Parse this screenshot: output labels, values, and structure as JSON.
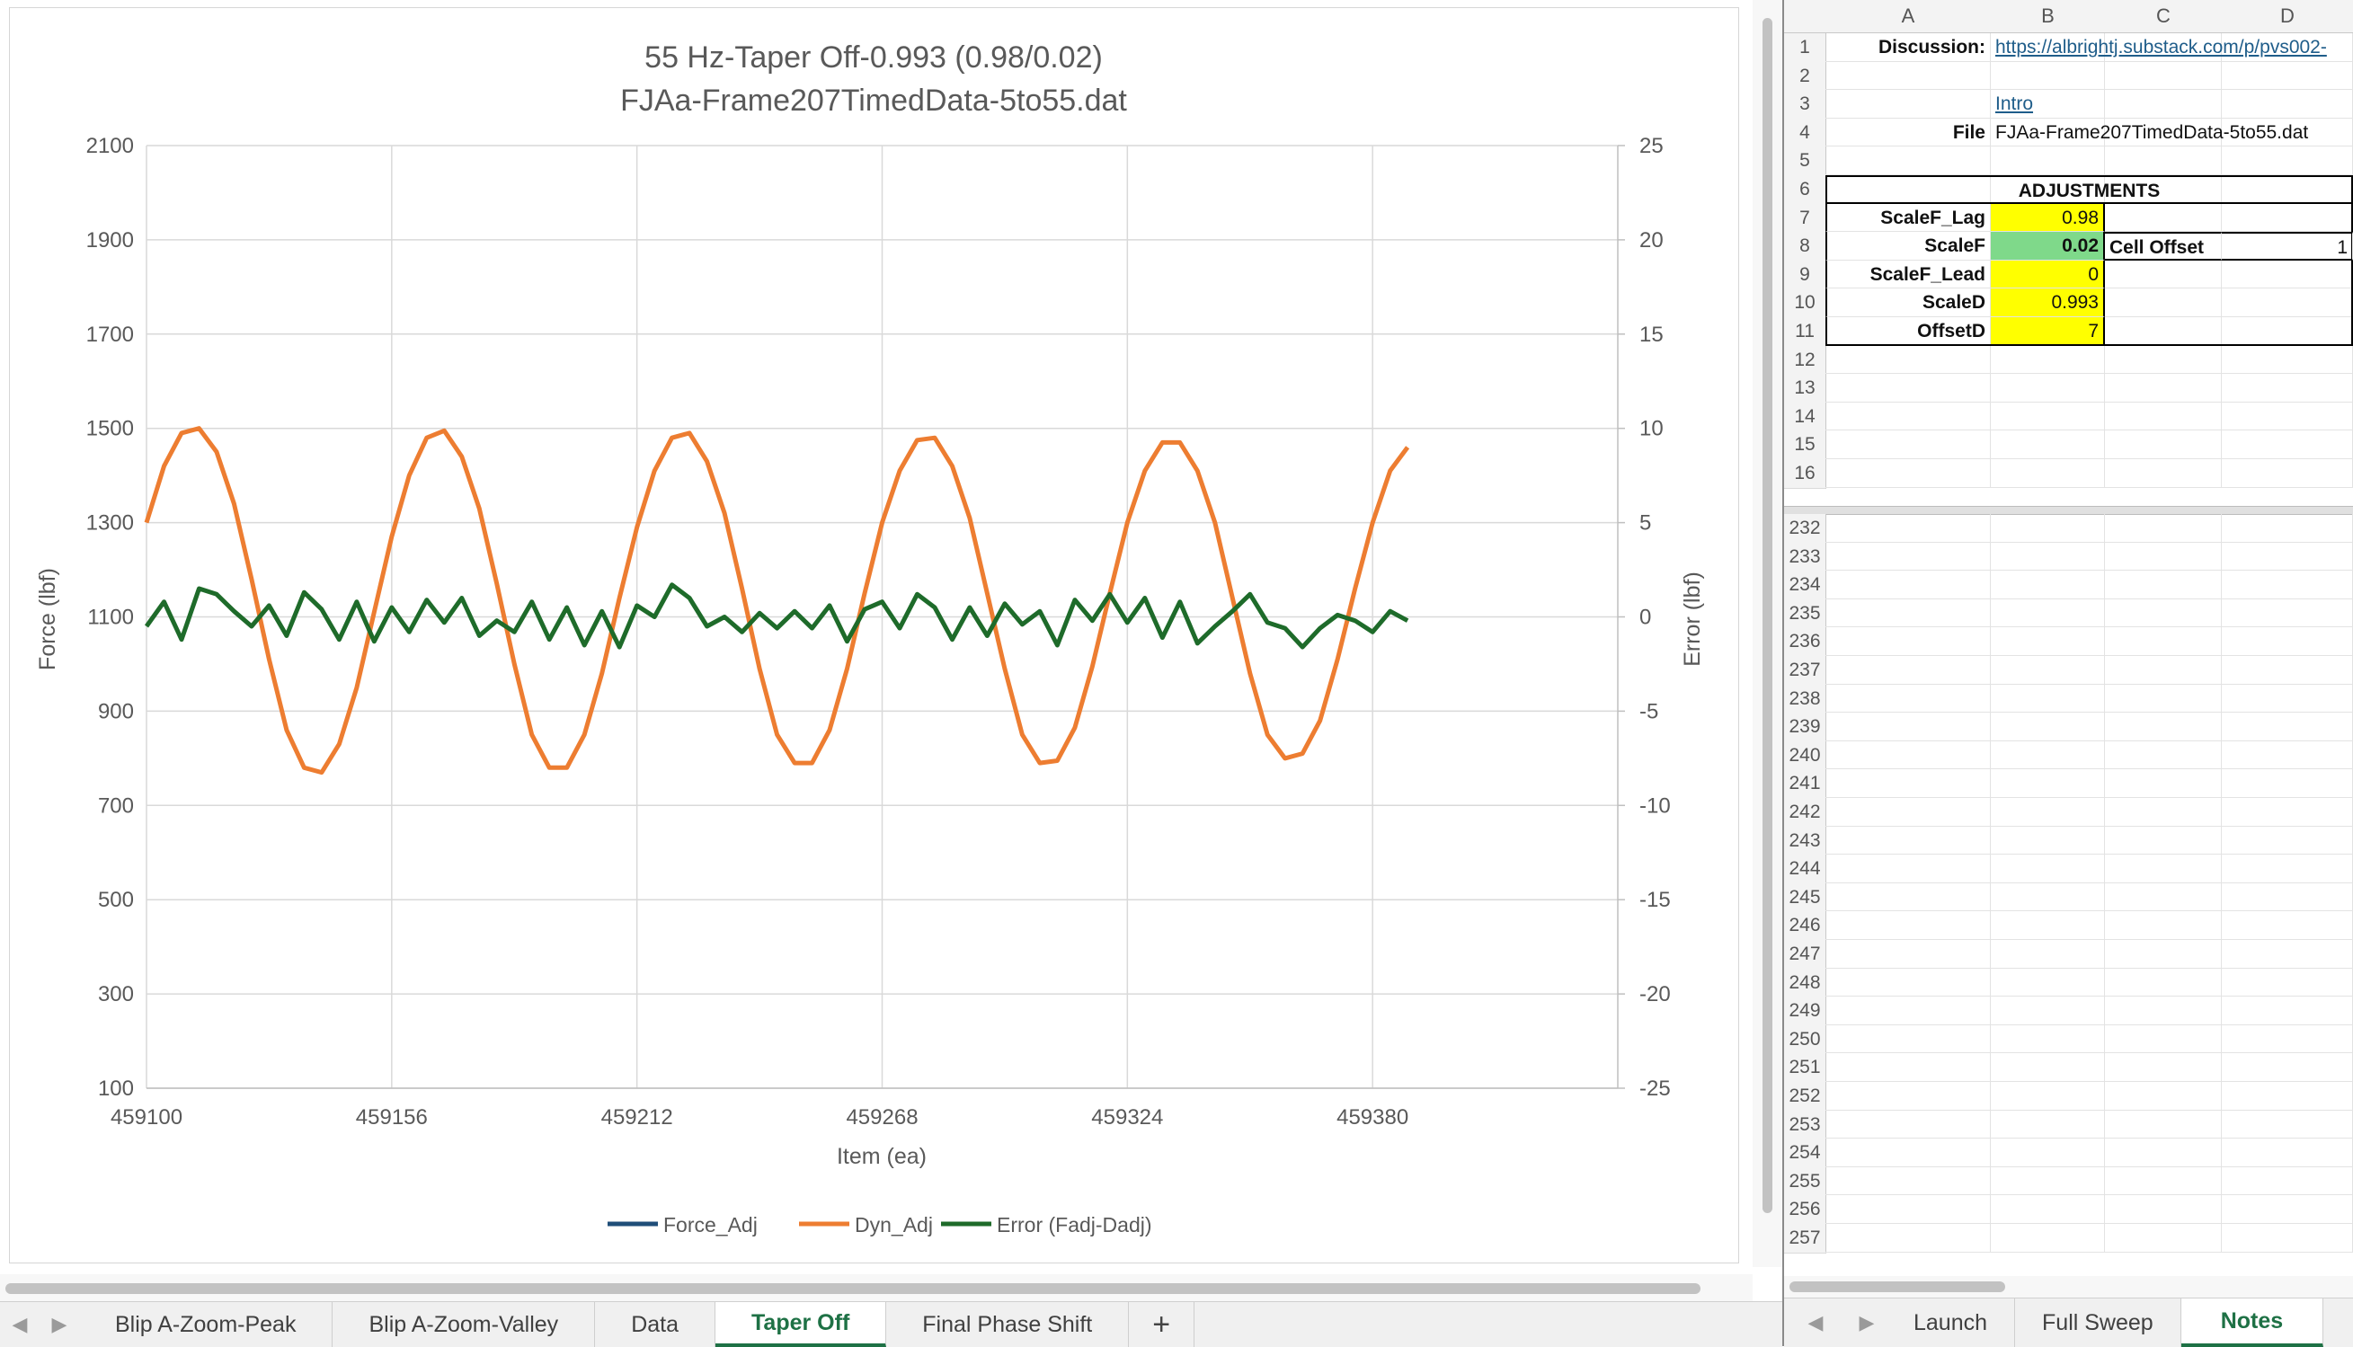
{
  "left_tabs": {
    "items": [
      {
        "label": "Blip A-Zoom-Peak",
        "active": false
      },
      {
        "label": "Blip A-Zoom-Valley",
        "active": false
      },
      {
        "label": "Data",
        "active": false
      },
      {
        "label": "Taper Off",
        "active": true
      },
      {
        "label": "Final Phase Shift",
        "active": false
      }
    ],
    "add_label": "+"
  },
  "right_tabs": {
    "items": [
      {
        "label": "Launch",
        "active": false
      },
      {
        "label": "Full Sweep",
        "active": false
      },
      {
        "label": "Notes",
        "active": true
      }
    ]
  },
  "icons": {
    "tab_prev": "chevron-left-icon",
    "tab_next": "chevron-right-icon",
    "add_sheet": "plus-icon"
  },
  "colors": {
    "force_adj": "#1f4e79",
    "dyn_adj": "#ed7d31",
    "error": "#1e6b2a",
    "active_tab": "#1e7145",
    "input_yellow": "#ffff00",
    "input_green": "#7fd98a"
  },
  "chart_data": {
    "type": "line",
    "title": "55 Hz-Taper Off-0.993 (0.98/0.02)",
    "subtitle": "FJAa-Frame207TimedData-5to55.dat",
    "xlabel": "Item (ea)",
    "ylabel": "Force (lbf)",
    "y2label": "Error (lbf)",
    "xlim": [
      459100,
      459436
    ],
    "ylim": [
      100,
      2100
    ],
    "y2lim": [
      -25,
      25
    ],
    "x_ticks": [
      "459100",
      "459156",
      "459212",
      "459268",
      "459324",
      "459380"
    ],
    "y_ticks": [
      "2100",
      "1900",
      "1700",
      "1500",
      "1300",
      "1100",
      "900",
      "700",
      "500",
      "300",
      "100"
    ],
    "y2_ticks": [
      "25",
      "20",
      "15",
      "10",
      "5",
      "0",
      "-5",
      "-10",
      "-15",
      "-20",
      "-25"
    ],
    "grid": true,
    "legend_position": "bottom",
    "series": [
      {
        "name": "Force_Adj",
        "axis": "left",
        "x": [],
        "values": []
      },
      {
        "name": "Dyn_Adj",
        "axis": "left",
        "x": [
          459100,
          459104,
          459108,
          459112,
          459116,
          459120,
          459124,
          459128,
          459132,
          459136,
          459140,
          459144,
          459148,
          459152,
          459156,
          459160,
          459164,
          459168,
          459172,
          459176,
          459180,
          459184,
          459188,
          459192,
          459196,
          459200,
          459204,
          459208,
          459212,
          459216,
          459220,
          459224,
          459228,
          459232,
          459236,
          459240,
          459244,
          459248,
          459252,
          459256,
          459260,
          459264,
          459268,
          459272,
          459276,
          459280,
          459284,
          459288,
          459292,
          459296,
          459300,
          459304,
          459308,
          459312,
          459316,
          459320,
          459324,
          459328,
          459332,
          459336,
          459340,
          459344,
          459348,
          459352,
          459356,
          459360,
          459364,
          459368,
          459372,
          459376,
          459380,
          459384,
          459388
        ],
        "values": [
          1300,
          1420,
          1490,
          1500,
          1450,
          1340,
          1180,
          1010,
          860,
          780,
          770,
          830,
          950,
          1110,
          1270,
          1400,
          1480,
          1495,
          1440,
          1330,
          1170,
          1000,
          850,
          780,
          780,
          850,
          980,
          1140,
          1290,
          1410,
          1480,
          1490,
          1430,
          1320,
          1160,
          990,
          850,
          790,
          790,
          860,
          990,
          1150,
          1300,
          1410,
          1475,
          1480,
          1420,
          1310,
          1150,
          990,
          850,
          790,
          795,
          865,
          995,
          1150,
          1300,
          1410,
          1470,
          1470,
          1410,
          1300,
          1140,
          980,
          850,
          800,
          810,
          880,
          1010,
          1160,
          1300,
          1410,
          1460
        ]
      },
      {
        "name": "Error (Fadj-Dadj)",
        "axis": "right",
        "x": [
          459100,
          459104,
          459108,
          459112,
          459116,
          459120,
          459124,
          459128,
          459132,
          459136,
          459140,
          459144,
          459148,
          459152,
          459156,
          459160,
          459164,
          459168,
          459172,
          459176,
          459180,
          459184,
          459188,
          459192,
          459196,
          459200,
          459204,
          459208,
          459212,
          459216,
          459220,
          459224,
          459228,
          459232,
          459236,
          459240,
          459244,
          459248,
          459252,
          459256,
          459260,
          459264,
          459268,
          459272,
          459276,
          459280,
          459284,
          459288,
          459292,
          459296,
          459300,
          459304,
          459308,
          459312,
          459316,
          459320,
          459324,
          459328,
          459332,
          459336,
          459340,
          459344,
          459348,
          459352,
          459356,
          459360,
          459364,
          459368,
          459372,
          459376,
          459380,
          459384,
          459388
        ],
        "values": [
          -0.5,
          0.8,
          -1.2,
          1.5,
          1.2,
          0.3,
          -0.5,
          0.6,
          -1.0,
          1.3,
          0.4,
          -1.2,
          0.8,
          -1.3,
          0.5,
          -0.8,
          0.9,
          -0.3,
          1.0,
          -1.0,
          -0.2,
          -0.8,
          0.8,
          -1.2,
          0.5,
          -1.5,
          0.3,
          -1.6,
          0.6,
          0.0,
          1.7,
          1.0,
          -0.5,
          0.0,
          -0.8,
          0.2,
          -0.6,
          0.3,
          -0.6,
          0.6,
          -1.3,
          0.4,
          0.8,
          -0.6,
          1.2,
          0.5,
          -1.2,
          0.5,
          -1.0,
          0.7,
          -0.4,
          0.3,
          -1.5,
          0.9,
          -0.2,
          1.2,
          -0.3,
          1.0,
          -1.1,
          0.8,
          -1.4,
          -0.5,
          0.3,
          1.2,
          -0.3,
          -0.6,
          -1.6,
          -0.6,
          0.1,
          -0.2,
          -0.8,
          0.3,
          -0.2
        ]
      }
    ]
  },
  "sheet": {
    "columns": [
      "A",
      "B",
      "C",
      "D"
    ],
    "top_rows": [
      "1",
      "2",
      "3",
      "4",
      "5",
      "6",
      "7",
      "8",
      "9",
      "10",
      "11",
      "12",
      "13",
      "14",
      "15",
      "16"
    ],
    "bottom_rows": [
      "232",
      "233",
      "234",
      "235",
      "236",
      "237",
      "238",
      "239",
      "240",
      "241",
      "242",
      "243",
      "244",
      "245",
      "246",
      "247",
      "248",
      "249",
      "250",
      "251",
      "252",
      "253",
      "254",
      "255",
      "256",
      "257"
    ],
    "discussion_label": "Discussion:",
    "discussion_link": "https://albrightj.substack.com/p/pvs002-",
    "intro_link": "Intro",
    "file_label": "File",
    "file_value": "FJAa-Frame207TimedData-5to55.dat",
    "adjustments_title": "ADJUSTMENTS",
    "params": [
      {
        "label": "ScaleF_Lag",
        "value": "0.98",
        "fill": "yellow",
        "bold": false
      },
      {
        "label": "ScaleF",
        "value": "0.02",
        "fill": "green",
        "bold": true
      },
      {
        "label": "ScaleF_Lead",
        "value": "0",
        "fill": "yellow",
        "bold": false
      },
      {
        "label": "ScaleD",
        "value": "0.993",
        "fill": "yellow",
        "bold": false
      },
      {
        "label": "OffsetD",
        "value": "7",
        "fill": "yellow",
        "bold": false
      }
    ],
    "cell_offset_label": "Cell Offset",
    "cell_offset_value": "1"
  }
}
